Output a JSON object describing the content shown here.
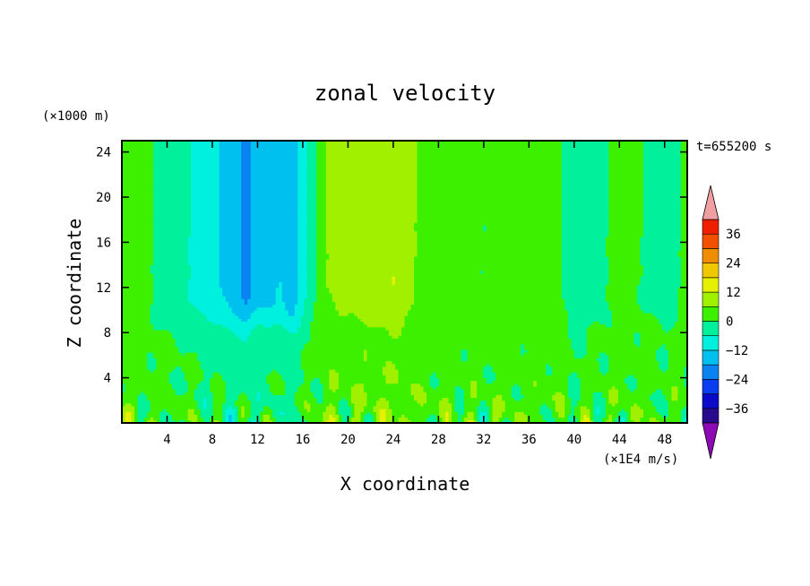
{
  "chart_data": {
    "type": "heatmap",
    "title": "zonal velocity",
    "xlabel": "X coordinate",
    "ylabel": "Z coordinate",
    "y_units": "(×1000 m)",
    "x_units": "(×1E4 m/s)",
    "time_label": "t=655200 s",
    "xlim": [
      0,
      50
    ],
    "ylim": [
      0,
      25
    ],
    "x_ticks": [
      "4",
      "8",
      "12",
      "16",
      "20",
      "24",
      "28",
      "32",
      "36",
      "40",
      "44",
      "48"
    ],
    "y_ticks": [
      "4",
      "8",
      "12",
      "16",
      "20",
      "24"
    ],
    "colorbar": {
      "tick_labels": [
        "36",
        "24",
        "12",
        "0",
        "-12",
        "-24",
        "-36"
      ],
      "levels": [
        -42,
        -36,
        -30,
        -24,
        -18,
        -12,
        -6,
        0,
        6,
        12,
        18,
        24,
        30,
        36,
        42
      ],
      "colors": [
        "#7a0aa0",
        "#280a8c",
        "#0a0ac8",
        "#0a3cf0",
        "#0a82f0",
        "#00c0f0",
        "#00f0e0",
        "#00f09c",
        "#3cf000",
        "#a0f000",
        "#e6f000",
        "#f0c800",
        "#f08c00",
        "#f05000",
        "#f01e00",
        "#f0a0a0"
      ],
      "over_color": "#f0a0a0",
      "under_color": "#8c0ab4"
    },
    "column_profile": {
      "x": [
        0,
        2,
        4,
        6,
        8,
        10,
        11,
        12,
        14,
        15,
        16,
        18,
        20,
        22,
        24,
        26,
        28,
        30,
        32,
        34,
        36,
        38,
        40,
        42,
        44,
        46,
        48,
        50
      ],
      "upper_u": [
        2,
        1,
        -2,
        -6,
        -10,
        -16,
        -20,
        -14,
        -12,
        -17,
        -8,
        6,
        8,
        10,
        12,
        6,
        4,
        2,
        0,
        3,
        1,
        4,
        -4,
        -2,
        2,
        0,
        -2,
        1
      ]
    }
  }
}
